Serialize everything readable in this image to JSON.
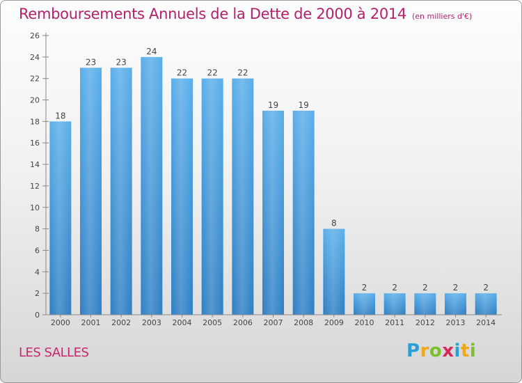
{
  "header": {
    "title": "Remboursements Annuels de la Dette de 2000 à 2014",
    "subtitle": "(en milliers d'€)"
  },
  "location": "LES SALLES",
  "logo": {
    "letters": [
      "P",
      "r",
      "o",
      "x",
      "i",
      "t",
      "i"
    ],
    "colors": [
      "#2aa0d8",
      "#f0a818",
      "#7bbf2a",
      "#d42b5a",
      "#2aa0d8",
      "#f0a818",
      "#7bbf2a"
    ]
  },
  "chart_data": {
    "type": "bar",
    "title": "Remboursements Annuels de la Dette de 2000 à 2014",
    "categories": [
      "2000",
      "2001",
      "2002",
      "2003",
      "2004",
      "2005",
      "2006",
      "2007",
      "2008",
      "2009",
      "2010",
      "2011",
      "2012",
      "2013",
      "2014"
    ],
    "values": [
      18,
      23,
      23,
      24,
      22,
      22,
      22,
      19,
      19,
      8,
      2,
      2,
      2,
      2,
      2
    ],
    "ylim": [
      0,
      26
    ],
    "yticks": [
      0,
      2,
      4,
      6,
      8,
      10,
      12,
      14,
      16,
      18,
      20,
      22,
      24,
      26
    ],
    "grid": false,
    "bar_color": "#4a9fe0"
  }
}
